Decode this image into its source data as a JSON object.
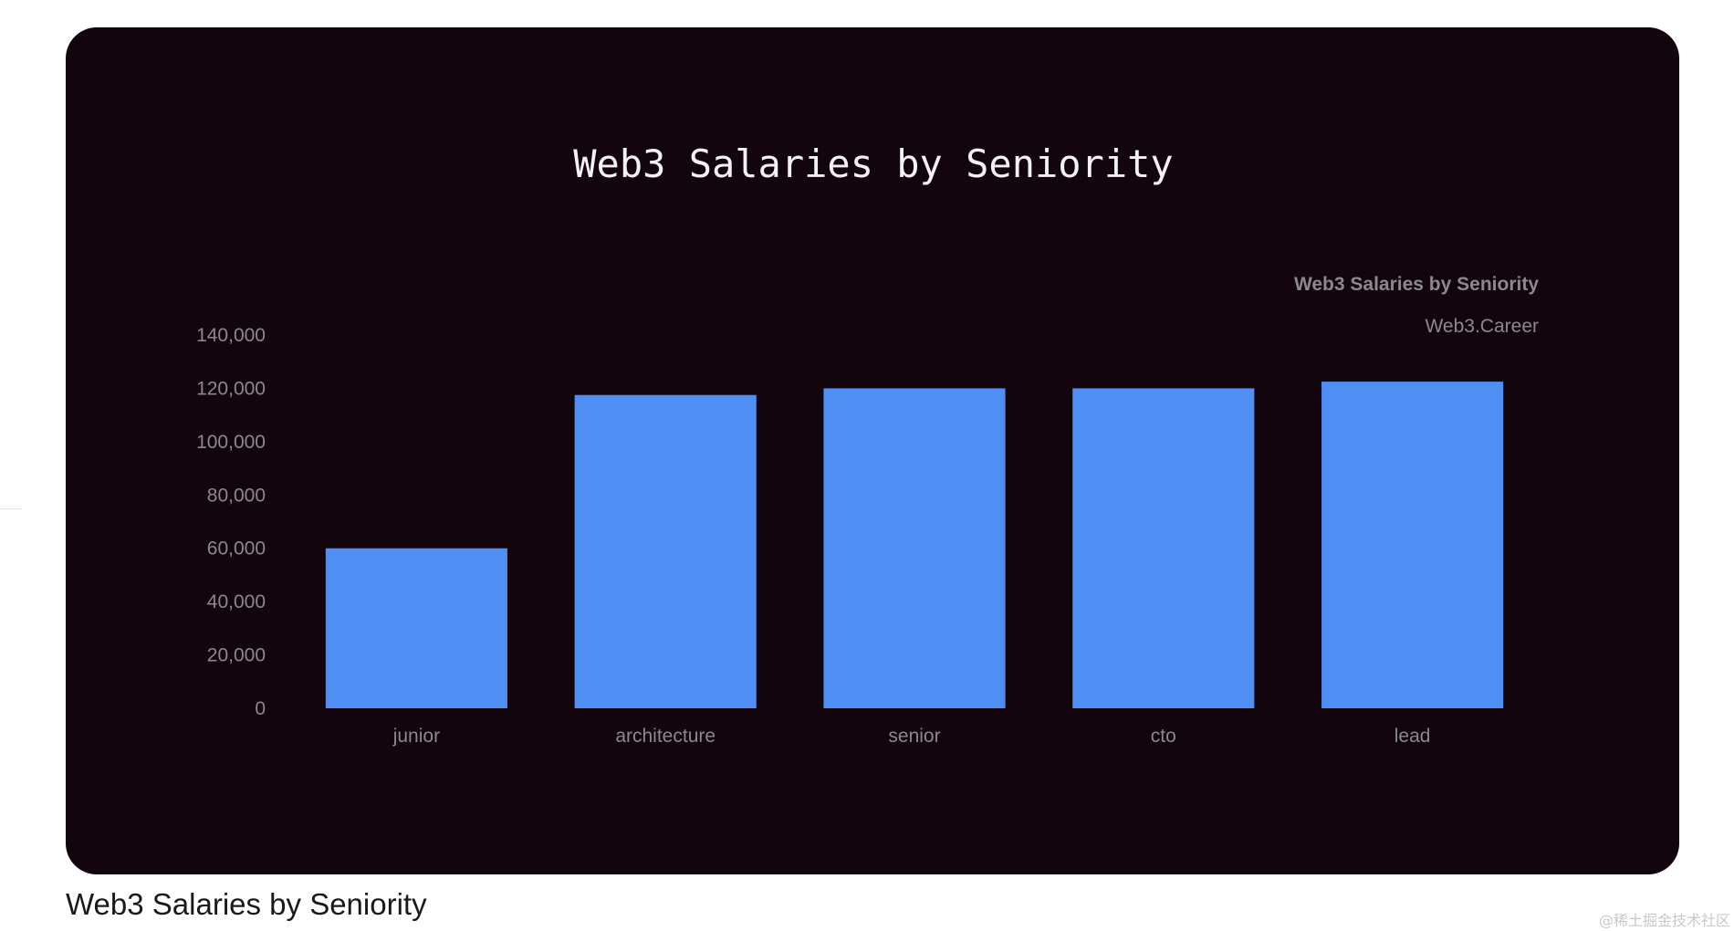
{
  "caption": "Web3 Salaries by Seniority",
  "watermark": "@稀土掘金技术社区",
  "colors": {
    "card_background": "#12050d",
    "bar": "#4f8ef2",
    "text_muted": "#8a8a8a",
    "title": "#f2f2f2"
  },
  "chart_data": {
    "type": "bar",
    "title": "Web3 Salaries by Seniority",
    "inner_title": "Web3 Salaries by Seniority",
    "inner_subtitle": "Web3.Career",
    "categories": [
      "junior",
      "architecture",
      "senior",
      "cto",
      "lead"
    ],
    "values": [
      60000,
      117500,
      120000,
      120000,
      122500
    ],
    "ylim": [
      0,
      140000
    ],
    "yticks": [
      0,
      20000,
      40000,
      60000,
      80000,
      100000,
      120000,
      140000
    ],
    "ytick_labels": [
      "0",
      "20,000",
      "40,000",
      "60,000",
      "80,000",
      "100,000",
      "120,000",
      "140,000"
    ],
    "xlabel": "",
    "ylabel": "",
    "grid": false,
    "legend": "none"
  }
}
